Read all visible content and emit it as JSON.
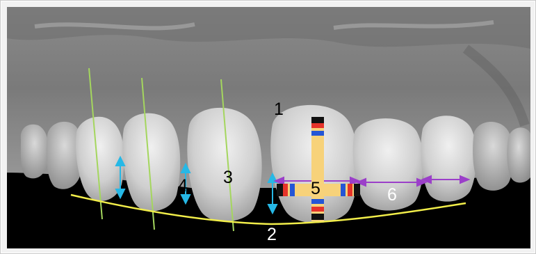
{
  "figure": {
    "labels": {
      "gingival_zenith": "1",
      "incisal_curve": "2",
      "long_axis": "3",
      "contact_height": "4",
      "central_proportion": "5",
      "width_ratio": "6"
    }
  },
  "colors": {
    "axis_lines": "#a4d65e",
    "smile_curve": "#f2ee4a",
    "vertical_arrows": "#26b8e6",
    "width_arrows": "#9b3fc9",
    "proportion_bars": "#f7d27a"
  }
}
